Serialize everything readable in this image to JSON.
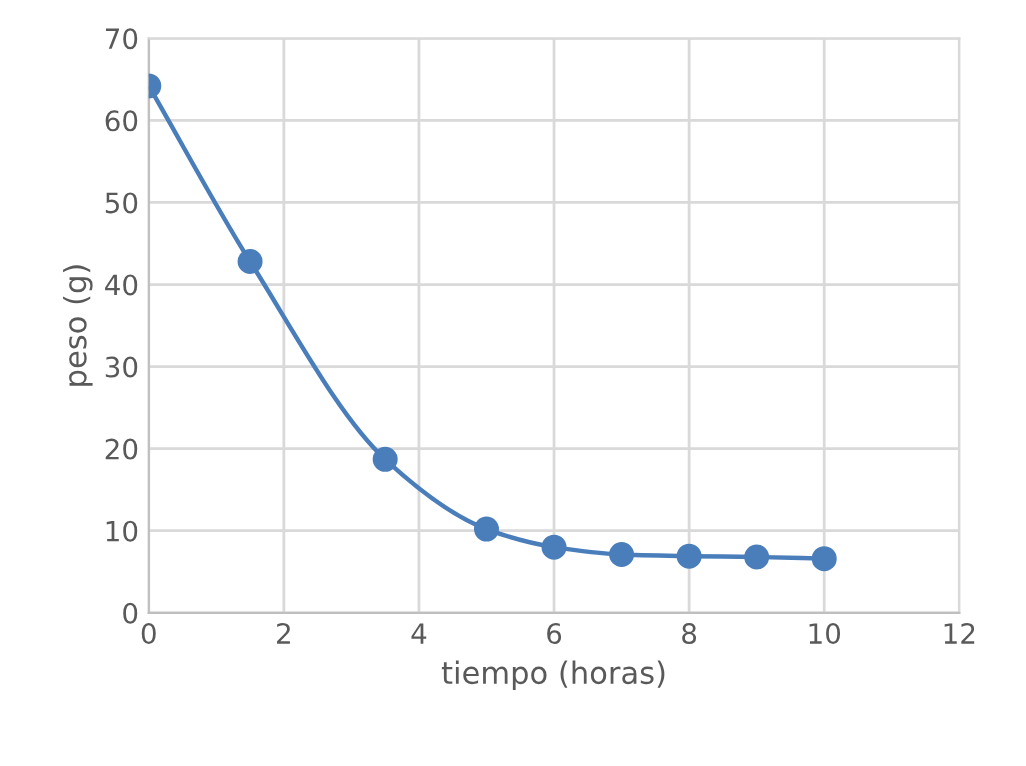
{
  "chart_data": {
    "type": "line",
    "xlabel": "tiempo (horas)",
    "ylabel": "peso (g)",
    "x": [
      0,
      1.5,
      3.5,
      5,
      6,
      7,
      8,
      9,
      10
    ],
    "series": [
      {
        "color": "#4a7ebb",
        "values": [
          64.2,
          42.8,
          18.7,
          10.2,
          8.0,
          7.1,
          6.9,
          6.8,
          6.6
        ]
      }
    ],
    "xlim": [
      0,
      12
    ],
    "xticks": [
      0,
      2,
      4,
      6,
      8,
      10,
      12
    ],
    "ylim": [
      0,
      70
    ],
    "yticks": [
      0,
      10,
      20,
      30,
      40,
      50,
      60,
      70
    ],
    "grid": true,
    "marker": "circle",
    "line_style": "solid"
  }
}
